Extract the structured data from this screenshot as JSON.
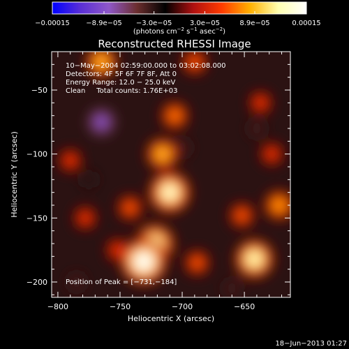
{
  "chart_data": {
    "type": "heatmap",
    "title": "Reconstructed RHESSI Image",
    "xlabel": "Heliocentric X (arcsec)",
    "ylabel": "Heliocentric Y (arcsec)",
    "xlim": [
      -805,
      -613
    ],
    "ylim": [
      -212,
      -20
    ],
    "x_ticks": [
      -800,
      -750,
      -700,
      -650
    ],
    "x_tick_labels": [
      "−800",
      "−750",
      "−700",
      "−650"
    ],
    "y_ticks": [
      -50,
      -100,
      -150,
      -200
    ],
    "y_tick_labels": [
      "−50",
      "−100",
      "−150",
      "−200"
    ],
    "colorbar": {
      "min": -0.00015,
      "max": 0.00015,
      "tick_values": [
        -0.00015,
        -8.9e-05,
        -3e-05,
        3e-05,
        8.9e-05,
        0.00015
      ],
      "tick_labels": [
        "−0.00015",
        "−8.9e−05",
        "−3.0e−05",
        "3.0e−05",
        "8.9e−05",
        "0.00015"
      ],
      "unit_prefix": "(photons cm",
      "unit_exp1": "−2",
      "unit_mid": " s",
      "unit_exp2": "−1",
      "unit_mid2": " asec",
      "unit_exp3": "−2",
      "unit_suffix": ")",
      "colors": [
        "#0000ff",
        "#5a2fd6",
        "#8f57c8",
        "#6b2e2e",
        "#000000",
        "#b01010",
        "#ff3b00",
        "#ffb000",
        "#ffffb0",
        "#ffffff"
      ]
    },
    "info_lines": [
      "10−May−2004 02:59:00.000 to 03:02:08.000",
      "Detectors: 4F 5F 6F 7F 8F, Att 0",
      "Energy Range: 12.0 − 25.0 keV",
      "Clean     Total counts: 1.76E+03"
    ],
    "peak_label": "Position of Peak = [−731,−184]",
    "peak": [
      -731,
      -184
    ],
    "sources": [
      {
        "x": -731,
        "y": -184,
        "value": 0.00015
      },
      {
        "x": -722,
        "y": -170,
        "value": 0.00012
      },
      {
        "x": -710,
        "y": -130,
        "value": 0.00013
      },
      {
        "x": -716,
        "y": -100,
        "value": 9e-05
      },
      {
        "x": -706,
        "y": -70,
        "value": 7e-05
      },
      {
        "x": -742,
        "y": -142,
        "value": 6e-05
      },
      {
        "x": -752,
        "y": -175,
        "value": 5e-05
      },
      {
        "x": -688,
        "y": -185,
        "value": 6e-05
      },
      {
        "x": -642,
        "y": -182,
        "value": 0.00012
      },
      {
        "x": -652,
        "y": -148,
        "value": 6e-05
      },
      {
        "x": -622,
        "y": -140,
        "value": 8e-05
      },
      {
        "x": -628,
        "y": -100,
        "value": 5e-05
      },
      {
        "x": -765,
        "y": -28,
        "value": 9e-05
      },
      {
        "x": -790,
        "y": -105,
        "value": 5e-05
      },
      {
        "x": -778,
        "y": -150,
        "value": 5e-05
      },
      {
        "x": -690,
        "y": -28,
        "value": 6e-05
      },
      {
        "x": -637,
        "y": -60,
        "value": 5e-05
      },
      {
        "x": -765,
        "y": -75,
        "value": -9e-05
      },
      {
        "x": -700,
        "y": -95,
        "value": -4e-05
      },
      {
        "x": -640,
        "y": -80,
        "value": -4e-05
      },
      {
        "x": -660,
        "y": -205,
        "value": -4e-05
      },
      {
        "x": -785,
        "y": -200,
        "value": -4e-05
      },
      {
        "x": -775,
        "y": -120,
        "value": -3e-05
      }
    ],
    "background_value": -3e-05
  },
  "timestamp": "18−Jun−2013 01:27"
}
